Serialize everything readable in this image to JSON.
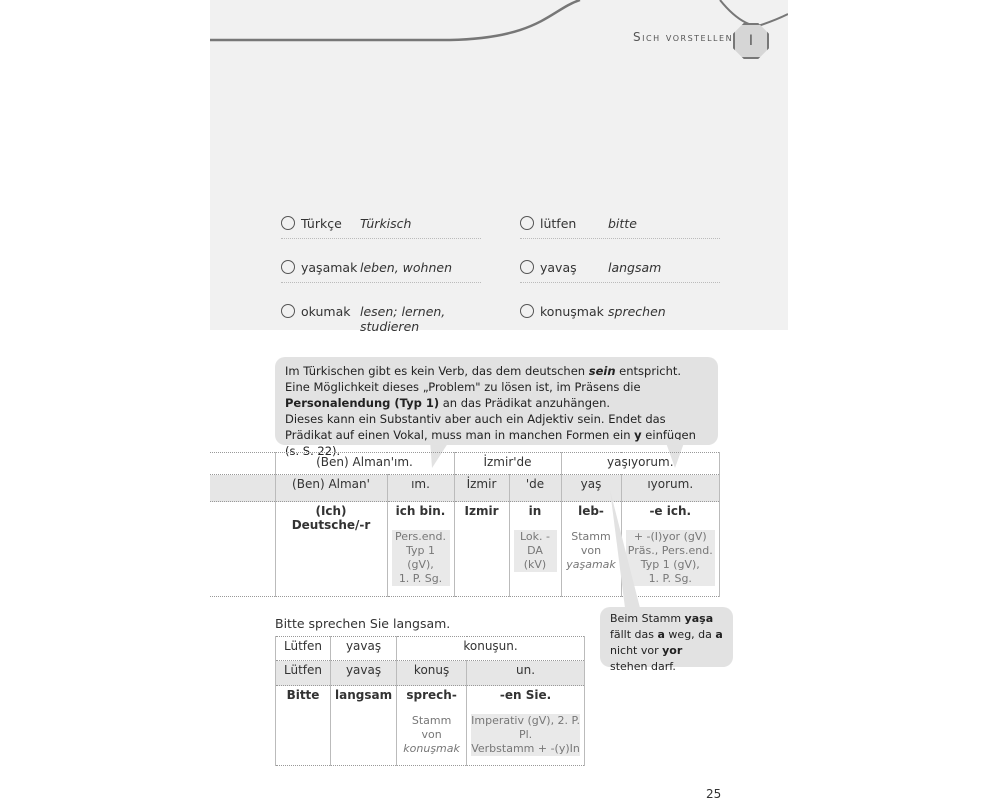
{
  "header": {
    "chapter": "Sich vorstellen",
    "chapter_number": "I"
  },
  "vocab": [
    {
      "word": "Türkçe",
      "translation": "Türkisch"
    },
    {
      "word": "lütfen",
      "translation": "bitte"
    },
    {
      "word": "yaşamak",
      "translation": "leben, wohnen"
    },
    {
      "word": "yavaş",
      "translation": "langsam"
    },
    {
      "word": "okumak",
      "translation": "lesen; lernen, studieren"
    },
    {
      "word": "konuşmak",
      "translation": "sprechen"
    }
  ],
  "bubble1": {
    "p1a": "Im Türkischen gibt es kein Verb, das dem deutschen ",
    "p1b": "sein",
    "p1c": " entspricht. Eine Möglichkeit dieses „Problem\" zu lösen ist, im Präsens die ",
    "p1d": "Personalendung (Typ 1)",
    "p1e": " an das Prädikat anzuhängen.",
    "p2a": "Dieses kann ein Substantiv aber auch ein Adjektiv sein. Endet das Prädikat auf einen Vokal, muss man in manchen Formen ein ",
    "p2b": "y",
    "p2c": " einfügen (s. S. 22)."
  },
  "table1": {
    "row1": [
      "(Ben) Alman'ım.",
      "İzmir'de",
      "yaşıyorum."
    ],
    "row2": [
      "(Ben) Alman'",
      "ım.",
      "İzmir",
      "'de",
      "yaş",
      "ıyorum."
    ],
    "row3": [
      "(Ich) Deutsche/-r",
      "ich bin.",
      "Izmir",
      "in",
      "leb-",
      "-e ich."
    ],
    "notes": {
      "c2": [
        "Pers.end.",
        "Typ 1 (gV),",
        "1. P. Sg."
      ],
      "c4": [
        "Lok. -DA",
        "(kV)"
      ],
      "c5": [
        "Stamm",
        "von",
        "yaşamak"
      ],
      "c6": [
        "+ -(I)yor (gV)",
        "Präs., Pers.end.",
        "Typ 1 (gV),",
        "1. P. Sg."
      ]
    }
  },
  "bubble2": {
    "a": "Beim Stamm ",
    "b": "yaşa",
    "c": " fällt das ",
    "d": "a",
    "e": " weg, da ",
    "f": "a",
    "g": " nicht vor ",
    "h": "yor",
    "i": " stehen darf."
  },
  "sentence": "Bitte sprechen Sie langsam.",
  "table2": {
    "row1": [
      "Lütfen",
      "yavaş",
      "konuşun."
    ],
    "row2": [
      "Lütfen",
      "yavaş",
      "konuş",
      "un."
    ],
    "row3": [
      "Bitte",
      "langsam",
      "sprech-",
      "-en Sie."
    ],
    "notes": {
      "c3": [
        "Stamm von",
        "konuşmak"
      ],
      "c4": [
        "Imperativ (gV), 2. P. Pl.",
        "Verbstamm + -(y)In"
      ]
    }
  },
  "page_number": "25"
}
